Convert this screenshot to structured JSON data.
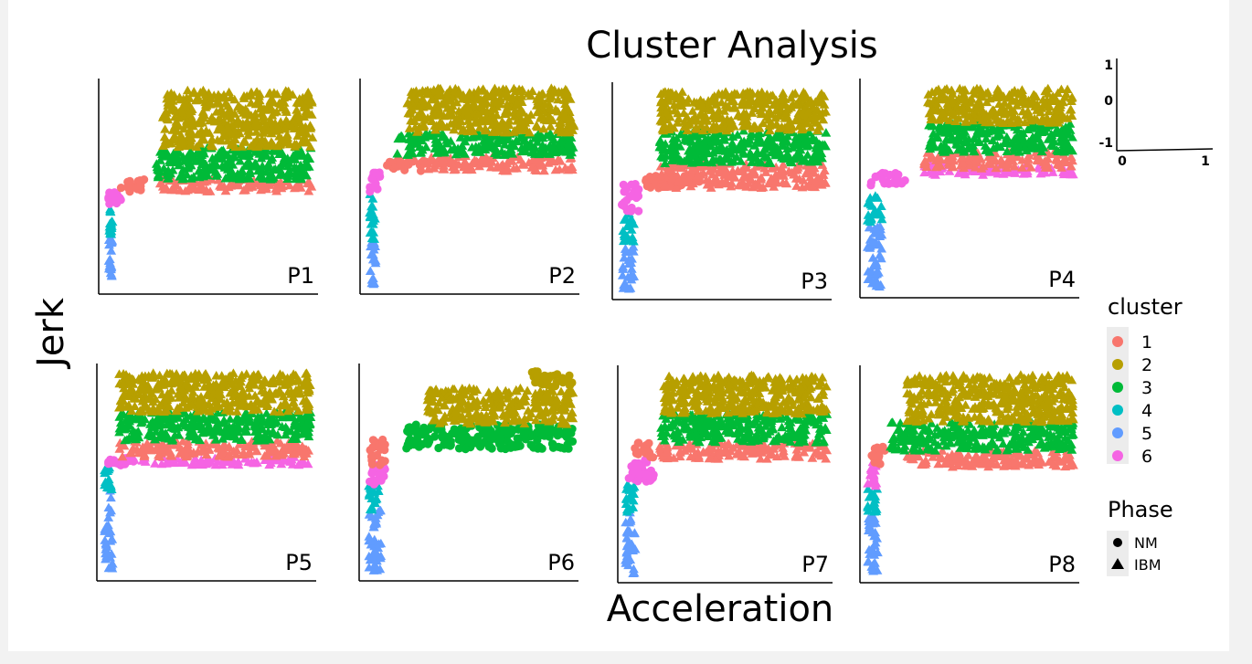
{
  "chart_data": {
    "type": "scatter",
    "title": "Cluster Analysis",
    "xlabel": "Acceleration",
    "ylabel": "Jerk",
    "grid": false,
    "legend_placement": "right",
    "colors": {
      "1": "#f8766d",
      "2": "#b79f00",
      "3": "#00ba38",
      "4": "#00bfc4",
      "5": "#619cff",
      "6": "#f564e3"
    },
    "legend": {
      "cluster": {
        "title": "cluster",
        "items": [
          {
            "key": "1",
            "label": "1"
          },
          {
            "key": "2",
            "label": "2"
          },
          {
            "key": "3",
            "label": "3"
          },
          {
            "key": "4",
            "label": "4"
          },
          {
            "key": "5",
            "label": "5"
          },
          {
            "key": "6",
            "label": "6"
          }
        ]
      },
      "phase": {
        "title": "Phase",
        "items": [
          {
            "shape": "circle",
            "label": "NM"
          },
          {
            "shape": "triangle",
            "label": "IBM"
          }
        ]
      }
    },
    "inset": {
      "x_ticks": [
        "0",
        "1"
      ],
      "y_ticks": [
        "1",
        "0",
        "-1"
      ]
    },
    "panels": [
      {
        "label": "P1",
        "clusters": [
          {
            "cluster": 5,
            "shape": "triangle",
            "x": [
              0.02,
              0.04
            ],
            "y": [
              0.0,
              0.25
            ]
          },
          {
            "cluster": 4,
            "shape": "triangle",
            "x": [
              0.02,
              0.04
            ],
            "y": [
              0.25,
              0.38
            ]
          },
          {
            "cluster": 6,
            "shape": "circle",
            "x": [
              0.02,
              0.08
            ],
            "y": [
              0.38,
              0.46
            ]
          },
          {
            "cluster": 1,
            "shape": "circle",
            "x": [
              0.08,
              0.22
            ],
            "y": [
              0.46,
              0.52
            ]
          },
          {
            "cluster": 1,
            "shape": "triangle",
            "x": [
              0.25,
              1.0
            ],
            "y": [
              0.46,
              0.52
            ]
          },
          {
            "cluster": 3,
            "shape": "triangle",
            "x": [
              0.25,
              1.0
            ],
            "y": [
              0.52,
              0.68
            ]
          },
          {
            "cluster": 2,
            "shape": "triangle",
            "x": [
              0.28,
              1.0
            ],
            "y": [
              0.68,
              0.96
            ]
          }
        ]
      },
      {
        "label": "P2",
        "clusters": [
          {
            "cluster": 5,
            "shape": "triangle",
            "x": [
              0.02,
              0.05
            ],
            "y": [
              0.0,
              0.22
            ]
          },
          {
            "cluster": 4,
            "shape": "triangle",
            "x": [
              0.02,
              0.05
            ],
            "y": [
              0.22,
              0.45
            ]
          },
          {
            "cluster": 6,
            "shape": "circle",
            "x": [
              0.02,
              0.07
            ],
            "y": [
              0.45,
              0.56
            ]
          },
          {
            "cluster": 1,
            "shape": "circle",
            "x": [
              0.1,
              0.3
            ],
            "y": [
              0.56,
              0.62
            ]
          },
          {
            "cluster": 1,
            "shape": "triangle",
            "x": [
              0.3,
              1.0
            ],
            "y": [
              0.56,
              0.64
            ]
          },
          {
            "cluster": 3,
            "shape": "triangle",
            "x": [
              0.15,
              1.0
            ],
            "y": [
              0.64,
              0.75
            ]
          },
          {
            "cluster": 2,
            "shape": "triangle",
            "x": [
              0.2,
              1.0
            ],
            "y": [
              0.75,
              0.97
            ]
          }
        ]
      },
      {
        "label": "P3",
        "clusters": [
          {
            "cluster": 5,
            "shape": "triangle",
            "x": [
              0.02,
              0.08
            ],
            "y": [
              0.0,
              0.22
            ]
          },
          {
            "cluster": 4,
            "shape": "triangle",
            "x": [
              0.02,
              0.08
            ],
            "y": [
              0.22,
              0.38
            ]
          },
          {
            "cluster": 6,
            "shape": "circle",
            "x": [
              0.02,
              0.1
            ],
            "y": [
              0.38,
              0.52
            ]
          },
          {
            "cluster": 1,
            "shape": "circle",
            "x": [
              0.12,
              0.4
            ],
            "y": [
              0.5,
              0.56
            ]
          },
          {
            "cluster": 1,
            "shape": "triangle",
            "x": [
              0.2,
              1.0
            ],
            "y": [
              0.5,
              0.62
            ]
          },
          {
            "cluster": 3,
            "shape": "triangle",
            "x": [
              0.2,
              1.0
            ],
            "y": [
              0.62,
              0.78
            ]
          },
          {
            "cluster": 2,
            "shape": "triangle",
            "x": [
              0.2,
              1.0
            ],
            "y": [
              0.78,
              0.97
            ]
          }
        ]
      },
      {
        "label": "P4",
        "clusters": [
          {
            "cluster": 5,
            "shape": "triangle",
            "x": [
              0.01,
              0.08
            ],
            "y": [
              0.0,
              0.32
            ]
          },
          {
            "cluster": 4,
            "shape": "triangle",
            "x": [
              0.01,
              0.08
            ],
            "y": [
              0.32,
              0.45
            ]
          },
          {
            "cluster": 6,
            "shape": "circle",
            "x": [
              0.02,
              0.2
            ],
            "y": [
              0.5,
              0.56
            ]
          },
          {
            "cluster": 6,
            "shape": "triangle",
            "x": [
              0.28,
              1.0
            ],
            "y": [
              0.55,
              0.6
            ]
          },
          {
            "cluster": 1,
            "shape": "triangle",
            "x": [
              0.28,
              1.0
            ],
            "y": [
              0.58,
              0.66
            ]
          },
          {
            "cluster": 3,
            "shape": "triangle",
            "x": [
              0.3,
              1.0
            ],
            "y": [
              0.66,
              0.8
            ]
          },
          {
            "cluster": 2,
            "shape": "triangle",
            "x": [
              0.3,
              1.0
            ],
            "y": [
              0.8,
              0.97
            ]
          }
        ]
      },
      {
        "label": "P5",
        "clusters": [
          {
            "cluster": 5,
            "shape": "triangle",
            "x": [
              0.01,
              0.05
            ],
            "y": [
              0.0,
              0.4
            ]
          },
          {
            "cluster": 4,
            "shape": "triangle",
            "x": [
              0.01,
              0.05
            ],
            "y": [
              0.4,
              0.52
            ]
          },
          {
            "cluster": 6,
            "shape": "circle",
            "x": [
              0.02,
              0.15
            ],
            "y": [
              0.52,
              0.56
            ]
          },
          {
            "cluster": 6,
            "shape": "triangle",
            "x": [
              0.1,
              1.0
            ],
            "y": [
              0.52,
              0.56
            ]
          },
          {
            "cluster": 1,
            "shape": "triangle",
            "x": [
              0.08,
              1.0
            ],
            "y": [
              0.56,
              0.64
            ]
          },
          {
            "cluster": 3,
            "shape": "triangle",
            "x": [
              0.08,
              1.0
            ],
            "y": [
              0.64,
              0.78
            ]
          },
          {
            "cluster": 2,
            "shape": "triangle",
            "x": [
              0.08,
              1.0
            ],
            "y": [
              0.78,
              0.97
            ]
          }
        ]
      },
      {
        "label": "P6",
        "clusters": [
          {
            "cluster": 5,
            "shape": "triangle",
            "x": [
              0.02,
              0.08
            ],
            "y": [
              0.0,
              0.3
            ]
          },
          {
            "cluster": 4,
            "shape": "triangle",
            "x": [
              0.02,
              0.08
            ],
            "y": [
              0.3,
              0.42
            ]
          },
          {
            "cluster": 6,
            "shape": "circle",
            "x": [
              0.02,
              0.1
            ],
            "y": [
              0.42,
              0.52
            ]
          },
          {
            "cluster": 1,
            "shape": "circle",
            "x": [
              0.02,
              0.1
            ],
            "y": [
              0.52,
              0.65
            ]
          },
          {
            "cluster": 3,
            "shape": "circle",
            "x": [
              0.2,
              1.0
            ],
            "y": [
              0.6,
              0.72
            ]
          },
          {
            "cluster": 2,
            "shape": "triangle",
            "x": [
              0.3,
              1.0
            ],
            "y": [
              0.72,
              0.9
            ]
          },
          {
            "cluster": 2,
            "shape": "circle",
            "x": [
              0.8,
              1.0
            ],
            "y": [
              0.9,
              0.98
            ]
          }
        ]
      },
      {
        "label": "P7",
        "clusters": [
          {
            "cluster": 5,
            "shape": "triangle",
            "x": [
              0.01,
              0.06
            ],
            "y": [
              0.0,
              0.3
            ]
          },
          {
            "cluster": 4,
            "shape": "triangle",
            "x": [
              0.01,
              0.06
            ],
            "y": [
              0.3,
              0.45
            ]
          },
          {
            "cluster": 6,
            "shape": "circle",
            "x": [
              0.02,
              0.15
            ],
            "y": [
              0.45,
              0.56
            ]
          },
          {
            "cluster": 1,
            "shape": "circle",
            "x": [
              0.05,
              0.15
            ],
            "y": [
              0.56,
              0.64
            ]
          },
          {
            "cluster": 1,
            "shape": "triangle",
            "x": [
              0.18,
              1.0
            ],
            "y": [
              0.56,
              0.64
            ]
          },
          {
            "cluster": 3,
            "shape": "triangle",
            "x": [
              0.18,
              1.0
            ],
            "y": [
              0.64,
              0.78
            ]
          },
          {
            "cluster": 2,
            "shape": "triangle",
            "x": [
              0.2,
              1.0
            ],
            "y": [
              0.78,
              0.97
            ]
          }
        ]
      },
      {
        "label": "P8",
        "clusters": [
          {
            "cluster": 5,
            "shape": "triangle",
            "x": [
              0.01,
              0.06
            ],
            "y": [
              0.0,
              0.3
            ]
          },
          {
            "cluster": 4,
            "shape": "triangle",
            "x": [
              0.01,
              0.06
            ],
            "y": [
              0.3,
              0.42
            ]
          },
          {
            "cluster": 6,
            "shape": "triangle",
            "x": [
              0.01,
              0.06
            ],
            "y": [
              0.42,
              0.55
            ]
          },
          {
            "cluster": 1,
            "shape": "circle",
            "x": [
              0.02,
              0.1
            ],
            "y": [
              0.52,
              0.62
            ]
          },
          {
            "cluster": 1,
            "shape": "triangle",
            "x": [
              0.2,
              1.0
            ],
            "y": [
              0.52,
              0.6
            ]
          },
          {
            "cluster": 3,
            "shape": "triangle",
            "x": [
              0.12,
              1.0
            ],
            "y": [
              0.6,
              0.74
            ]
          },
          {
            "cluster": 2,
            "shape": "triangle",
            "x": [
              0.2,
              1.0
            ],
            "y": [
              0.74,
              0.97
            ]
          }
        ]
      }
    ]
  }
}
